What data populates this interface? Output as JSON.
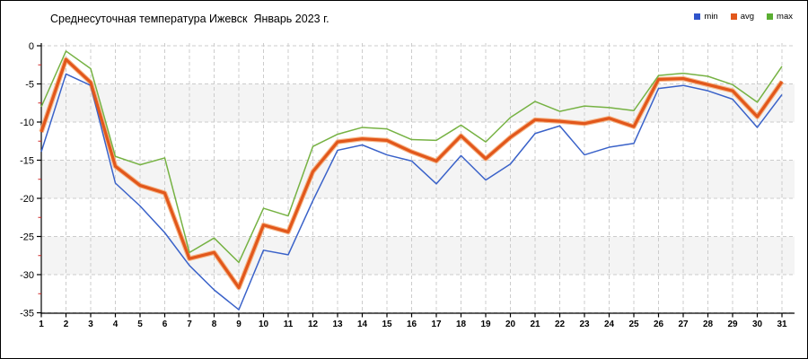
{
  "title": "Среднесуточная температура Ижевск  Январь 2023 г.",
  "legend": [
    {
      "label": "min",
      "color": "#2f54cb"
    },
    {
      "label": "avg",
      "color": "#e2571b"
    },
    {
      "label": "max",
      "color": "#5aae32"
    }
  ],
  "axes": {
    "y_tick_labels": [
      "0",
      "-5",
      "-10",
      "-15",
      "-20",
      "-25",
      "-30",
      "-35"
    ],
    "x_tick_labels": [
      "1",
      "2",
      "3",
      "4",
      "5",
      "6",
      "7",
      "8",
      "9",
      "10",
      "11",
      "12",
      "13",
      "14",
      "15",
      "16",
      "17",
      "18",
      "19",
      "20",
      "21",
      "22",
      "23",
      "24",
      "25",
      "26",
      "27",
      "28",
      "29",
      "30",
      "31"
    ]
  },
  "colors": {
    "band_gray": "#f4f4f4",
    "grid": "#cccccc",
    "axis": "#000000",
    "minor_tick_red": "#cc2222",
    "avg_halo": "#f4a46a"
  },
  "chart_data": {
    "type": "line",
    "title": "Среднесуточная температура Ижевск  Январь 2023 г.",
    "x": [
      1,
      2,
      3,
      4,
      5,
      6,
      7,
      8,
      9,
      10,
      11,
      12,
      13,
      14,
      15,
      16,
      17,
      18,
      19,
      20,
      21,
      22,
      23,
      24,
      25,
      26,
      27,
      28,
      29,
      30,
      31
    ],
    "xlabel": "",
    "ylabel": "",
    "ylim": [
      -35,
      0
    ],
    "ytick_step": 5,
    "ytick_minor_step": 2.5,
    "grid": true,
    "legend_position": "top-right",
    "series": [
      {
        "name": "min",
        "color": "#3a62c9",
        "width": 1.5,
        "values": [
          -13.9,
          -3.7,
          -5.2,
          -18.0,
          -21.0,
          -24.5,
          -28.8,
          -32.0,
          -34.6,
          -26.8,
          -27.4,
          -20.3,
          -13.7,
          -13.0,
          -14.3,
          -15.1,
          -18.1,
          -14.4,
          -17.6,
          -15.5,
          -11.5,
          -10.5,
          -14.3,
          -13.3,
          -12.8,
          -5.6,
          -5.2,
          -5.9,
          -7.0,
          -10.7,
          -6.4
        ]
      },
      {
        "name": "avg",
        "color": "#e2571b",
        "width": 3.2,
        "values": [
          -11.3,
          -1.8,
          -4.8,
          -15.8,
          -18.3,
          -19.3,
          -27.9,
          -27.1,
          -31.7,
          -23.5,
          -24.4,
          -16.5,
          -12.6,
          -12.2,
          -12.4,
          -13.9,
          -15.1,
          -11.8,
          -14.8,
          -12.0,
          -9.7,
          -9.9,
          -10.2,
          -9.5,
          -10.6,
          -4.4,
          -4.3,
          -5.1,
          -5.9,
          -9.3,
          -4.7
        ]
      },
      {
        "name": "max",
        "color": "#76b243",
        "width": 1.5,
        "values": [
          -8.0,
          -0.7,
          -3.0,
          -14.5,
          -15.6,
          -14.7,
          -27.1,
          -25.2,
          -28.4,
          -21.3,
          -22.3,
          -13.2,
          -11.6,
          -10.7,
          -10.9,
          -12.3,
          -12.4,
          -10.4,
          -12.6,
          -9.4,
          -7.3,
          -8.6,
          -7.9,
          -8.1,
          -8.5,
          -3.9,
          -3.6,
          -4.0,
          -5.1,
          -7.4,
          -2.7
        ]
      }
    ]
  }
}
